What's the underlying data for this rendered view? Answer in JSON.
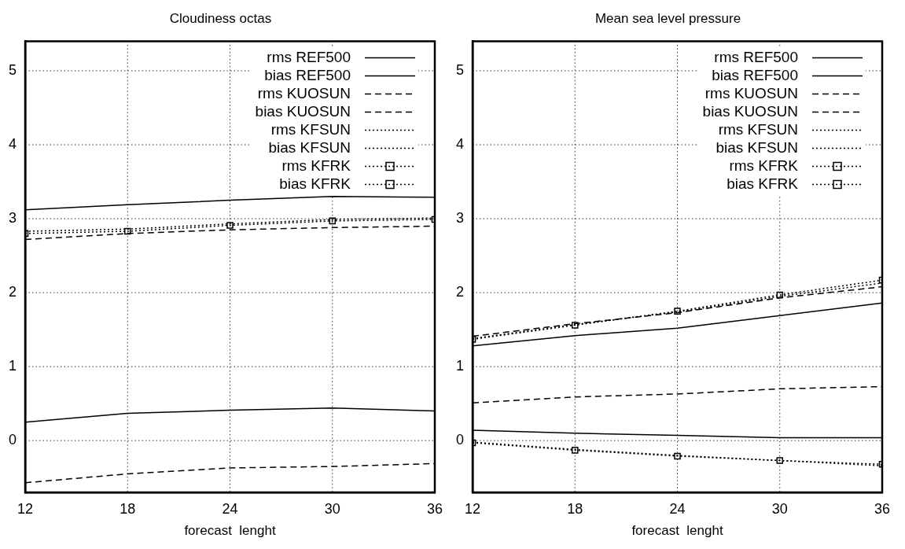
{
  "chart_data": [
    {
      "type": "line",
      "title": "Cloudiness octas",
      "xlabel": "forecast  lenght",
      "x": [
        12,
        18,
        24,
        30,
        36
      ],
      "xlim": [
        12,
        36
      ],
      "xticks": [
        12,
        18,
        24,
        30,
        36
      ],
      "ylim": [
        -0.7,
        5.4
      ],
      "yticks": [
        0,
        1,
        2,
        3,
        4,
        5
      ],
      "grid": true,
      "legend": "top right",
      "series": [
        {
          "name": "rms REF500",
          "color": "#000000",
          "line_style": "solid",
          "values": [
            3.12,
            3.19,
            3.25,
            3.3,
            3.29
          ]
        },
        {
          "name": "bias REF500",
          "color": "#000000",
          "line_style": "solid",
          "values": [
            0.25,
            0.37,
            0.41,
            0.44,
            0.4
          ]
        },
        {
          "name": "rms KUOSUN",
          "color": "#000000",
          "line_style": "dashed",
          "values": [
            2.72,
            2.8,
            2.85,
            2.88,
            2.9
          ]
        },
        {
          "name": "bias KUOSUN",
          "color": "#000000",
          "line_style": "dashed",
          "values": [
            -0.57,
            -0.45,
            -0.37,
            -0.35,
            -0.31
          ]
        },
        {
          "name": "rms KFSUN",
          "color": "#000000",
          "line_style": "dotted",
          "values": [
            2.83,
            2.86,
            2.93,
            2.99,
            3.01
          ]
        },
        {
          "name": "bias KFSUN",
          "color": "#000000",
          "line_style": "dotted",
          "values": [
            null,
            null,
            null,
            null,
            null
          ]
        },
        {
          "name": "rms KFRK",
          "color": "#000000",
          "line_style": "dotted",
          "marker": "square",
          "values": [
            2.8,
            2.83,
            2.91,
            2.97,
            2.99
          ]
        },
        {
          "name": "bias KFRK",
          "color": "#000000",
          "line_style": "dotted",
          "marker": "square",
          "values": [
            null,
            null,
            null,
            null,
            null
          ]
        }
      ]
    },
    {
      "type": "line",
      "title": "Mean sea level pressure",
      "xlabel": "forecast  lenght",
      "x": [
        12,
        18,
        24,
        30,
        36
      ],
      "xlim": [
        12,
        36
      ],
      "xticks": [
        12,
        18,
        24,
        30,
        36
      ],
      "ylim": [
        -0.7,
        5.4
      ],
      "yticks": [
        0,
        1,
        2,
        3,
        4,
        5
      ],
      "grid": true,
      "legend": "top right",
      "series": [
        {
          "name": "rms REF500",
          "color": "#000000",
          "line_style": "solid",
          "values": [
            1.28,
            1.42,
            1.52,
            1.69,
            1.86
          ]
        },
        {
          "name": "bias REF500",
          "color": "#000000",
          "line_style": "solid",
          "values": [
            0.14,
            0.1,
            0.07,
            0.04,
            0.04
          ]
        },
        {
          "name": "rms KUOSUN",
          "color": "#000000",
          "line_style": "dashed",
          "values": [
            1.41,
            1.58,
            1.73,
            1.93,
            2.08
          ]
        },
        {
          "name": "bias KUOSUN",
          "color": "#000000",
          "line_style": "dashed",
          "values": [
            0.51,
            0.59,
            0.63,
            0.7,
            0.73
          ]
        },
        {
          "name": "rms KFSUN",
          "color": "#000000",
          "line_style": "dotted",
          "values": [
            1.38,
            1.57,
            1.74,
            1.95,
            2.13
          ]
        },
        {
          "name": "bias KFSUN",
          "color": "#000000",
          "line_style": "dotted",
          "values": [
            -0.02,
            -0.12,
            -0.2,
            -0.27,
            -0.34
          ]
        },
        {
          "name": "rms KFRK",
          "color": "#000000",
          "line_style": "dotted",
          "marker": "square",
          "values": [
            1.37,
            1.56,
            1.75,
            1.97,
            2.17
          ]
        },
        {
          "name": "bias KFRK",
          "color": "#000000",
          "line_style": "dotted",
          "marker": "square",
          "values": [
            -0.03,
            -0.13,
            -0.21,
            -0.27,
            -0.32
          ]
        }
      ]
    }
  ]
}
